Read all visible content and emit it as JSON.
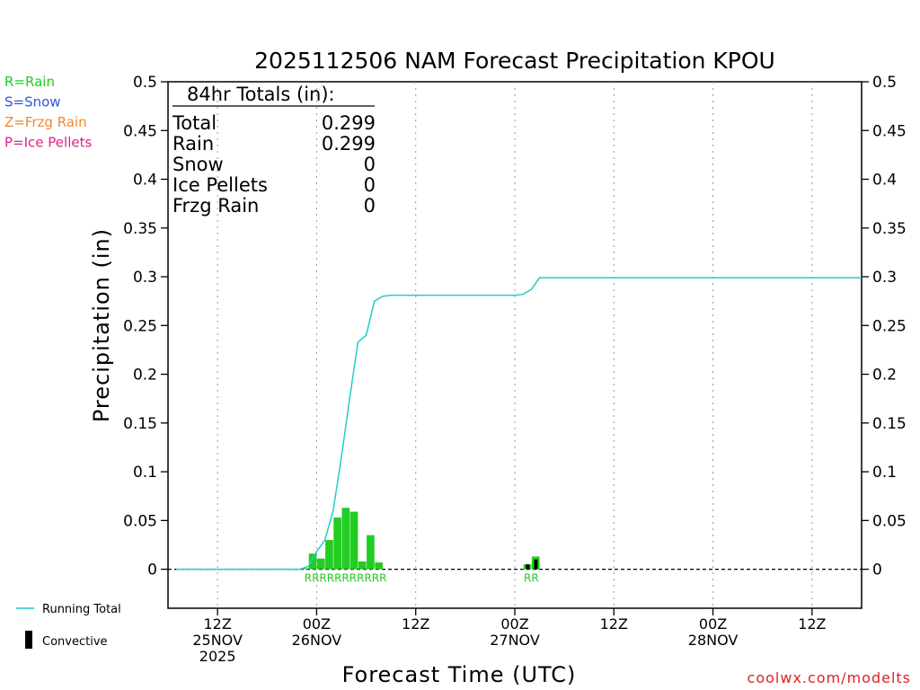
{
  "colors": {
    "rain": "#22cc22",
    "snow": "#3355dd",
    "frzg": "#ee8833",
    "ice": "#dd2288",
    "running_total": "#22cccc",
    "convective": "#000000",
    "credit": "#dd2222"
  },
  "type_legend": [
    {
      "label": "R=Rain",
      "color_key": "rain"
    },
    {
      "label": "S=Snow",
      "color_key": "snow"
    },
    {
      "label": "Z=Frzg Rain",
      "color_key": "frzg"
    },
    {
      "label": "P=Ice Pellets",
      "color_key": "ice"
    }
  ],
  "totals_box": {
    "header": "84hr Totals (in):",
    "rows": [
      {
        "label": "Total",
        "value": "0.299"
      },
      {
        "label": "Rain",
        "value": "0.299"
      },
      {
        "label": "Snow",
        "value": "0"
      },
      {
        "label": "Ice Pellets",
        "value": "0"
      },
      {
        "label": "Frzg Rain",
        "value": "0"
      }
    ]
  },
  "bottom_legend": {
    "running_total": "Running Total",
    "convective": "Convective"
  },
  "credit": "coolwx.com/modelts",
  "chart_data": {
    "type": "bar",
    "title": "2025112506 NAM Forecast Precipitation KPOU",
    "xlabel": "Forecast Time (UTC)",
    "ylabel": "Precipitation (in)",
    "ylim": [
      -0.04,
      0.5
    ],
    "yticks": [
      "0.5",
      "0.45",
      "0.4",
      "0.35",
      "0.3",
      "0.25",
      "0.2",
      "0.15",
      "0.1",
      "0.05",
      "0"
    ],
    "xlim_hours": [
      0,
      84
    ],
    "xticks": [
      {
        "hour": 6,
        "lines": [
          "12Z",
          "25NOV",
          "2025"
        ]
      },
      {
        "hour": 18,
        "lines": [
          "00Z",
          "26NOV"
        ]
      },
      {
        "hour": 30,
        "lines": [
          "12Z"
        ]
      },
      {
        "hour": 42,
        "lines": [
          "00Z",
          "27NOV"
        ]
      },
      {
        "hour": 54,
        "lines": [
          "12Z"
        ]
      },
      {
        "hour": 66,
        "lines": [
          "00Z",
          "28NOV"
        ]
      },
      {
        "hour": 78,
        "lines": [
          "12Z"
        ]
      }
    ],
    "bars": [
      {
        "hour": 17,
        "value": 0.001,
        "convective": 0
      },
      {
        "hour": 18,
        "value": 0.016,
        "convective": 0
      },
      {
        "hour": 19,
        "value": 0.011,
        "convective": 0
      },
      {
        "hour": 20,
        "value": 0.03,
        "convective": 0
      },
      {
        "hour": 21,
        "value": 0.053,
        "convective": 0
      },
      {
        "hour": 22,
        "value": 0.063,
        "convective": 0
      },
      {
        "hour": 23,
        "value": 0.059,
        "convective": 0
      },
      {
        "hour": 24,
        "value": 0.008,
        "convective": 0
      },
      {
        "hour": 25,
        "value": 0.035,
        "convective": 0
      },
      {
        "hour": 26,
        "value": 0.007,
        "convective": 0
      },
      {
        "hour": 44,
        "value": 0.005,
        "convective": 0.005
      },
      {
        "hour": 45,
        "value": 0.013,
        "convective": 0.01
      }
    ],
    "type_markers": {
      "color_key": "rain",
      "groups": [
        {
          "hour_start": 17,
          "count": 11,
          "text": "RRRRRRRRRRR"
        },
        {
          "hour_start": 44,
          "count": 2,
          "text": "RR"
        }
      ]
    },
    "series": [
      {
        "name": "Running Total",
        "x": [
          1,
          16,
          17,
          18,
          19,
          20,
          21,
          22,
          23,
          24,
          25,
          26,
          27,
          28,
          42,
          43,
          44,
          45,
          84
        ],
        "y": [
          0,
          0,
          0.003,
          0.018,
          0.03,
          0.06,
          0.115,
          0.175,
          0.233,
          0.24,
          0.275,
          0.28,
          0.281,
          0.281,
          0.281,
          0.282,
          0.287,
          0.299,
          0.299
        ]
      }
    ]
  }
}
